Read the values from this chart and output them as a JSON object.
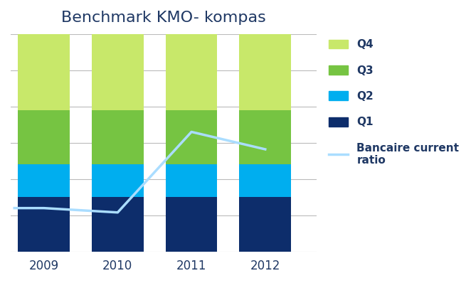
{
  "title": "Benchmark KMO- kompas",
  "years": [
    2009,
    2010,
    2011,
    2012
  ],
  "q1": [
    25,
    25,
    25,
    25
  ],
  "q2": [
    15,
    15,
    15,
    15
  ],
  "q3": [
    25,
    25,
    25,
    25
  ],
  "q4": [
    35,
    35,
    35,
    35
  ],
  "bancaire_line_x": [
    2008.6,
    2009,
    2010,
    2011,
    2012
  ],
  "bancaire_line_y": [
    20,
    20,
    18,
    55,
    47
  ],
  "colors": {
    "q1": "#0d2d6b",
    "q2": "#00aeef",
    "q3": "#76c442",
    "q4": "#c8e86a"
  },
  "line_color": "#aaddff",
  "background_color": "#ffffff",
  "title_color": "#1f3864",
  "text_color": "#1f3864",
  "ylim": [
    0,
    100
  ],
  "xlim_left": 2008.55,
  "xlim_right": 2012.7,
  "legend_labels": [
    "Q4",
    "Q3",
    "Q2",
    "Q1",
    "Bancaire current\nratio"
  ],
  "title_fontsize": 16,
  "tick_fontsize": 12,
  "legend_fontsize": 11,
  "line_width": 2.5,
  "grid_color": "#bbbbbb",
  "grid_linewidth": 0.8,
  "bar_width": 0.7
}
